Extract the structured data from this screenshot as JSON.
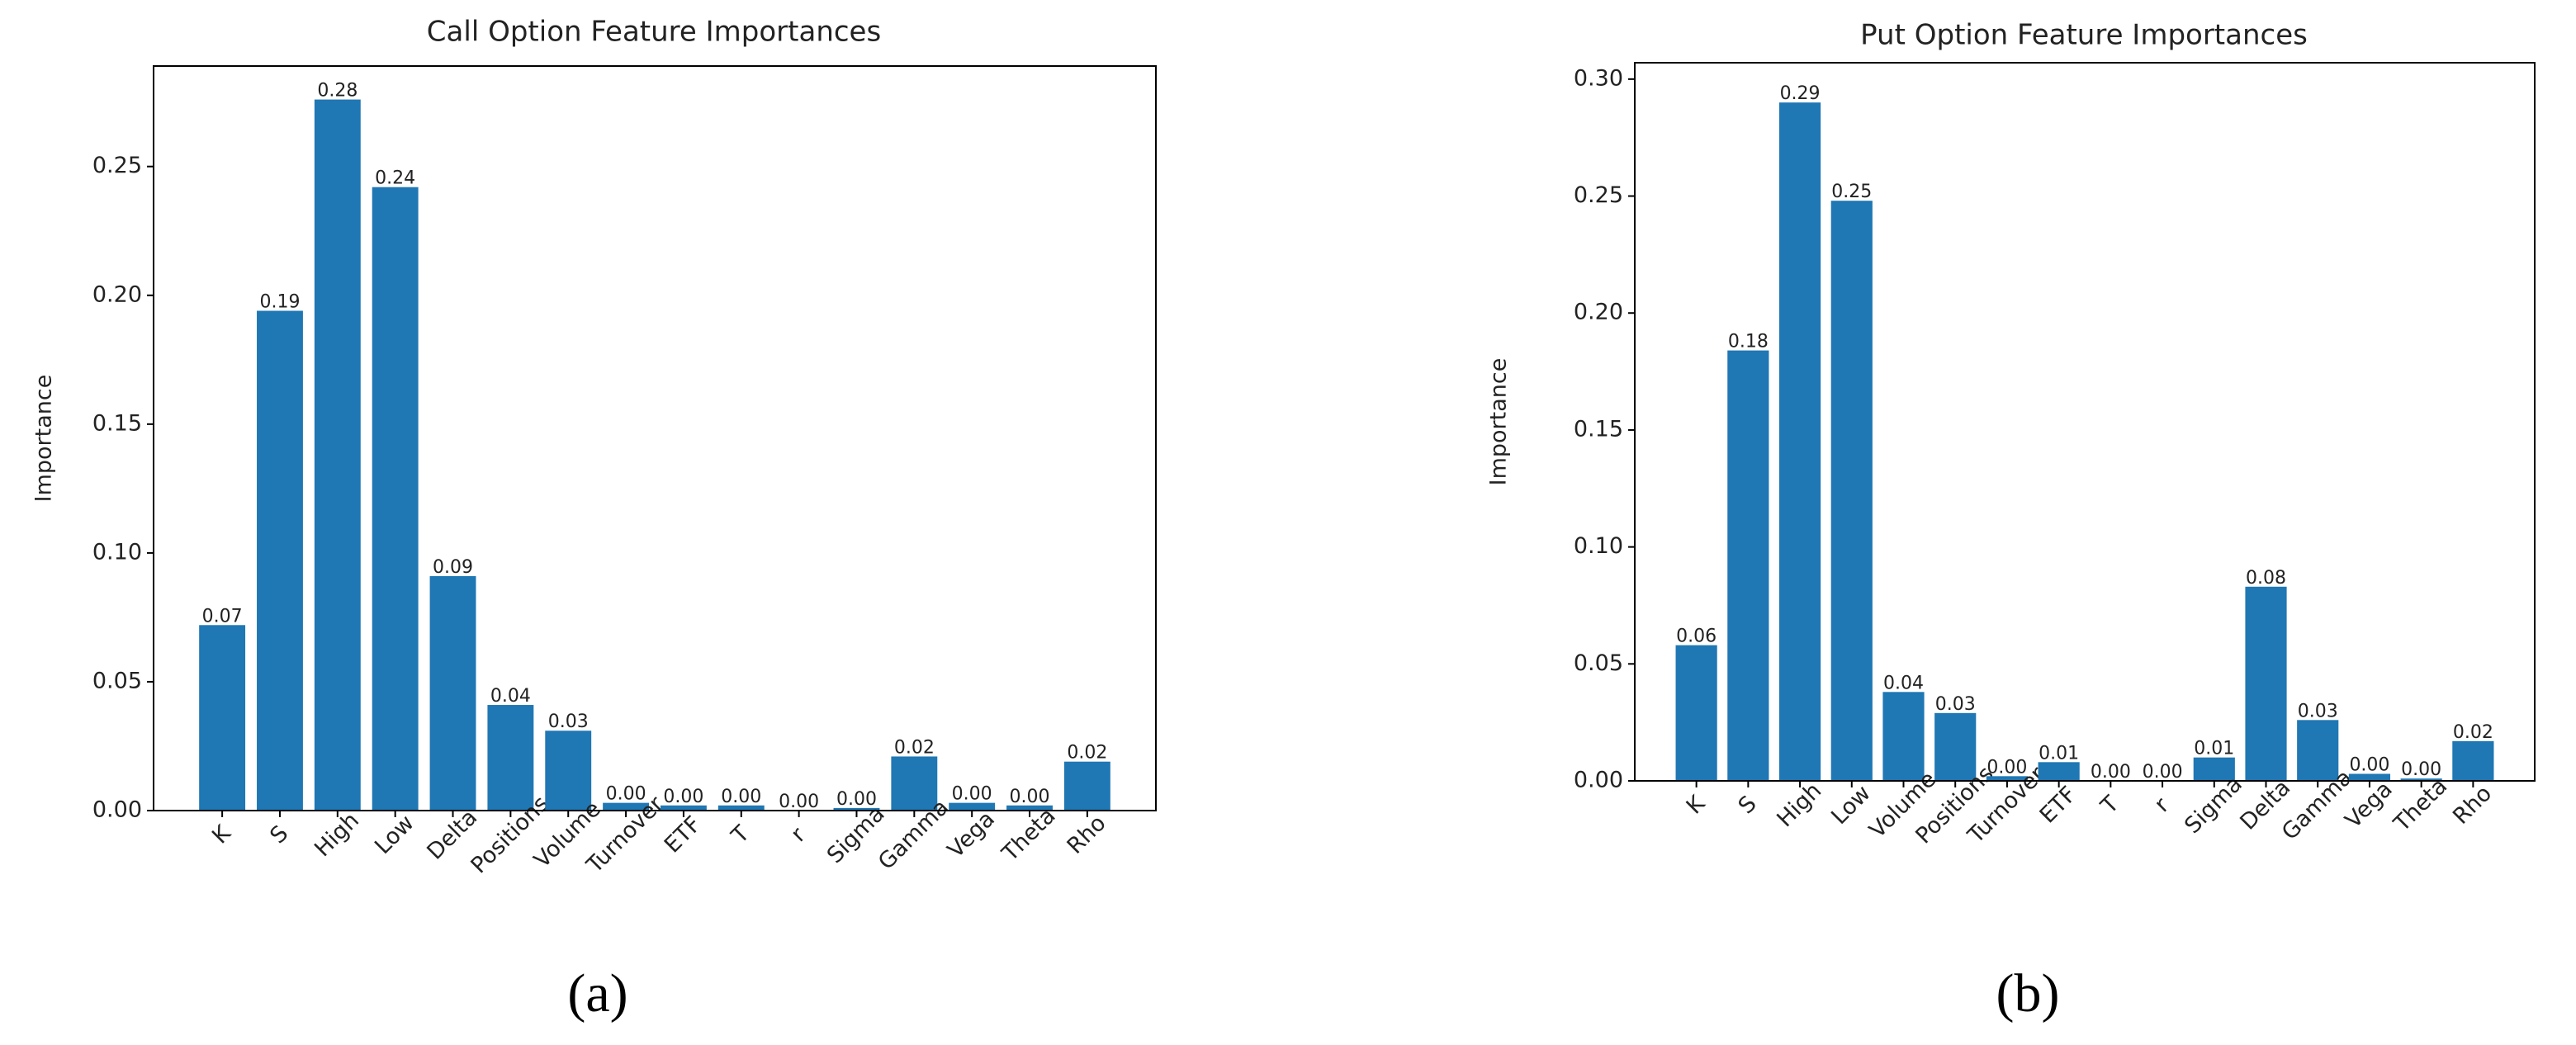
{
  "chart_data": [
    {
      "type": "bar",
      "title": "Call Option Feature Importances",
      "ylabel": "Importance",
      "caption": "(a)",
      "categories": [
        "K",
        "S",
        "High",
        "Low",
        "Delta",
        "Positions",
        "Volume",
        "Turnover",
        "ETF",
        "T",
        "r",
        "Sigma",
        "Gamma",
        "Vega",
        "Theta",
        "Rho"
      ],
      "values": [
        0.072,
        0.194,
        0.276,
        0.242,
        0.091,
        0.041,
        0.031,
        0.003,
        0.002,
        0.002,
        0.0,
        0.001,
        0.021,
        0.003,
        0.002,
        0.019
      ],
      "value_labels": [
        "0.07",
        "0.19",
        "0.28",
        "0.24",
        "0.09",
        "0.04",
        "0.03",
        "0.00",
        "0.00",
        "0.00",
        "0.00",
        "0.00",
        "0.02",
        "0.00",
        "0.00",
        "0.02"
      ],
      "color": "#1f77b4",
      "ylim": [
        0,
        0.289
      ],
      "yticks": [
        {
          "value": 0,
          "label": "0.00"
        },
        {
          "value": 0.05,
          "label": "0.05"
        },
        {
          "value": 0.1,
          "label": "0.10"
        },
        {
          "value": 0.15,
          "label": "0.15"
        },
        {
          "value": 0.2,
          "label": "0.20"
        },
        {
          "value": 0.25,
          "label": "0.25"
        }
      ]
    },
    {
      "type": "bar",
      "title": "Put Option Feature Importances",
      "ylabel": "Importance",
      "caption": "(b)",
      "categories": [
        "K",
        "S",
        "High",
        "Low",
        "Volume",
        "Positions",
        "Turnover",
        "ETF",
        "T",
        "r",
        "Sigma",
        "Delta",
        "Gamma",
        "Vega",
        "Theta",
        "Rho"
      ],
      "values": [
        0.058,
        0.184,
        0.29,
        0.248,
        0.038,
        0.029,
        0.002,
        0.008,
        0.0,
        0.0,
        0.01,
        0.083,
        0.026,
        0.003,
        0.001,
        0.017
      ],
      "value_labels": [
        "0.06",
        "0.18",
        "0.29",
        "0.25",
        "0.04",
        "0.03",
        "0.00",
        "0.01",
        "0.00",
        "0.00",
        "0.01",
        "0.08",
        "0.03",
        "0.00",
        "0.00",
        "0.02"
      ],
      "color": "#1f77b4",
      "ylim": [
        0,
        0.307
      ],
      "yticks": [
        {
          "value": 0,
          "label": "0.00"
        },
        {
          "value": 0.05,
          "label": "0.05"
        },
        {
          "value": 0.1,
          "label": "0.10"
        },
        {
          "value": 0.15,
          "label": "0.15"
        },
        {
          "value": 0.2,
          "label": "0.20"
        },
        {
          "value": 0.25,
          "label": "0.25"
        },
        {
          "value": 0.3,
          "label": "0.30"
        }
      ]
    }
  ]
}
